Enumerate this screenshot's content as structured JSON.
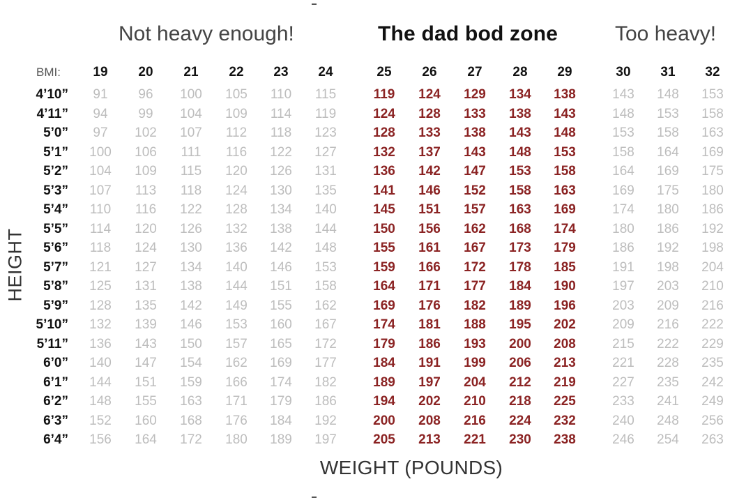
{
  "zones": {
    "under": "Not heavy enough!",
    "dad": "The dad bod zone",
    "over": "Too heavy!"
  },
  "axis": {
    "bmi_label": "BMI:",
    "y_title": "HEIGHT",
    "x_title": "WEIGHT (POUNDS)"
  },
  "colors": {
    "zone_values": "#8b2323",
    "light_values": "#bdbdbd"
  },
  "chart_data": {
    "type": "table",
    "columns": [
      19,
      20,
      21,
      22,
      23,
      24,
      25,
      26,
      27,
      28,
      29,
      30,
      31,
      32
    ],
    "zone_columns": [
      25,
      26,
      27,
      28,
      29
    ],
    "rows": [
      {
        "height": "4’10”",
        "values": [
          91,
          96,
          100,
          105,
          110,
          115,
          119,
          124,
          129,
          134,
          138,
          143,
          148,
          153
        ]
      },
      {
        "height": "4’11”",
        "values": [
          94,
          99,
          104,
          109,
          114,
          119,
          124,
          128,
          133,
          138,
          143,
          148,
          153,
          158
        ]
      },
      {
        "height": "5’0”",
        "values": [
          97,
          102,
          107,
          112,
          118,
          123,
          128,
          133,
          138,
          143,
          148,
          153,
          158,
          163
        ]
      },
      {
        "height": "5’1”",
        "values": [
          100,
          106,
          111,
          116,
          122,
          127,
          132,
          137,
          143,
          148,
          153,
          158,
          164,
          169
        ]
      },
      {
        "height": "5’2”",
        "values": [
          104,
          109,
          115,
          120,
          126,
          131,
          136,
          142,
          147,
          153,
          158,
          164,
          169,
          175
        ]
      },
      {
        "height": "5’3”",
        "values": [
          107,
          113,
          118,
          124,
          130,
          135,
          141,
          146,
          152,
          158,
          163,
          169,
          175,
          180
        ]
      },
      {
        "height": "5’4”",
        "values": [
          110,
          116,
          122,
          128,
          134,
          140,
          145,
          151,
          157,
          163,
          169,
          174,
          180,
          186
        ]
      },
      {
        "height": "5’5”",
        "values": [
          114,
          120,
          126,
          132,
          138,
          144,
          150,
          156,
          162,
          168,
          174,
          180,
          186,
          192
        ]
      },
      {
        "height": "5’6”",
        "values": [
          118,
          124,
          130,
          136,
          142,
          148,
          155,
          161,
          167,
          173,
          179,
          186,
          192,
          198
        ]
      },
      {
        "height": "5’7”",
        "values": [
          121,
          127,
          134,
          140,
          146,
          153,
          159,
          166,
          172,
          178,
          185,
          191,
          198,
          204
        ]
      },
      {
        "height": "5’8”",
        "values": [
          125,
          131,
          138,
          144,
          151,
          158,
          164,
          171,
          177,
          184,
          190,
          197,
          203,
          210
        ]
      },
      {
        "height": "5’9”",
        "values": [
          128,
          135,
          142,
          149,
          155,
          162,
          169,
          176,
          182,
          189,
          196,
          203,
          209,
          216
        ]
      },
      {
        "height": "5’10”",
        "values": [
          132,
          139,
          146,
          153,
          160,
          167,
          174,
          181,
          188,
          195,
          202,
          209,
          216,
          222
        ]
      },
      {
        "height": "5’11”",
        "values": [
          136,
          143,
          150,
          157,
          165,
          172,
          179,
          186,
          193,
          200,
          208,
          215,
          222,
          229
        ]
      },
      {
        "height": "6’0”",
        "values": [
          140,
          147,
          154,
          162,
          169,
          177,
          184,
          191,
          199,
          206,
          213,
          221,
          228,
          235
        ]
      },
      {
        "height": "6’1”",
        "values": [
          144,
          151,
          159,
          166,
          174,
          182,
          189,
          197,
          204,
          212,
          219,
          227,
          235,
          242
        ]
      },
      {
        "height": "6’2”",
        "values": [
          148,
          155,
          163,
          171,
          179,
          186,
          194,
          202,
          210,
          218,
          225,
          233,
          241,
          249
        ]
      },
      {
        "height": "6’3”",
        "values": [
          152,
          160,
          168,
          176,
          184,
          192,
          200,
          208,
          216,
          224,
          232,
          240,
          248,
          256
        ]
      },
      {
        "height": "6’4”",
        "values": [
          156,
          164,
          172,
          180,
          189,
          197,
          205,
          213,
          221,
          230,
          238,
          246,
          254,
          263
        ]
      }
    ]
  }
}
